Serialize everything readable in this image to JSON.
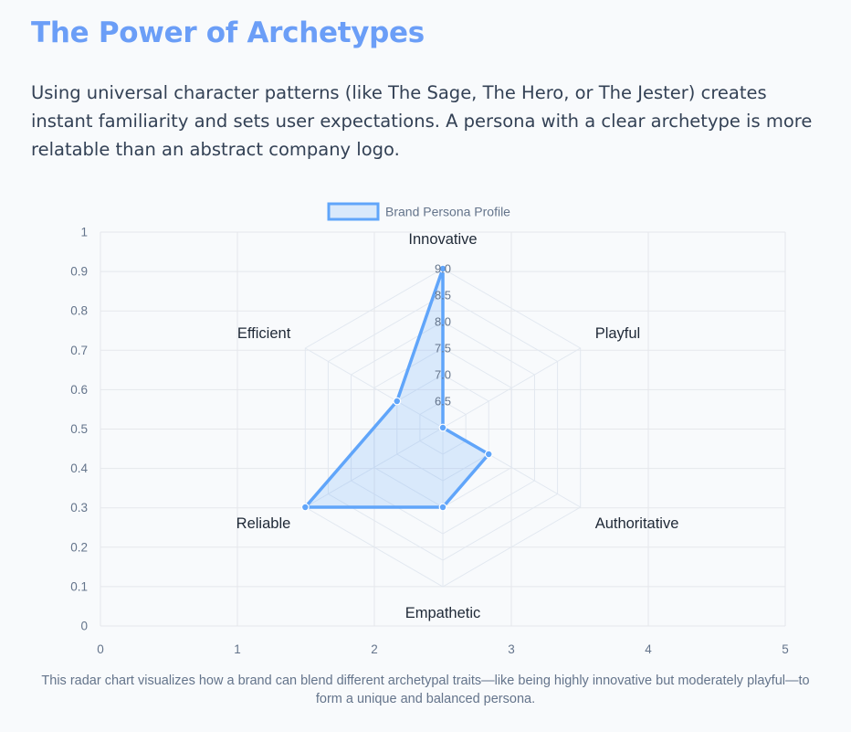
{
  "page": {
    "title": "The Power of Archetypes",
    "intro": "Using universal character patterns (like The Sage, The Hero, or The Jester) creates instant familiarity and sets user expectations. A persona with a clear archetype is more relatable than an abstract company logo.",
    "caption": "This radar chart visualizes how a brand can blend different archetypal traits—like being highly innovative but moderately playful—to form a unique and balanced persona."
  },
  "chart_data": {
    "type": "radar",
    "labels": [
      "Innovative",
      "Playful",
      "Authoritative",
      "Empathetic",
      "Reliable",
      "Efficient"
    ],
    "series": [
      {
        "name": "Brand Persona Profile",
        "values": [
          9.0,
          6.0,
          7.0,
          7.5,
          9.0,
          7.0
        ],
        "color": "#60a5fa",
        "fill": "rgba(96,165,250,0.2)"
      }
    ],
    "r_ticks": [
      "6.5",
      "7.0",
      "7.5",
      "8.0",
      "8.5",
      "9.0"
    ],
    "r_range": [
      6,
      9
    ],
    "x_ticks": [
      "0",
      "1",
      "2",
      "3",
      "4",
      "5"
    ],
    "y_ticks": [
      "0",
      "0.1",
      "0.2",
      "0.3",
      "0.4",
      "0.5",
      "0.6",
      "0.7",
      "0.8",
      "0.9",
      "1"
    ],
    "x_range": [
      0,
      5
    ],
    "y_range": [
      0,
      1
    ],
    "legend_position": "top",
    "grid": true
  }
}
